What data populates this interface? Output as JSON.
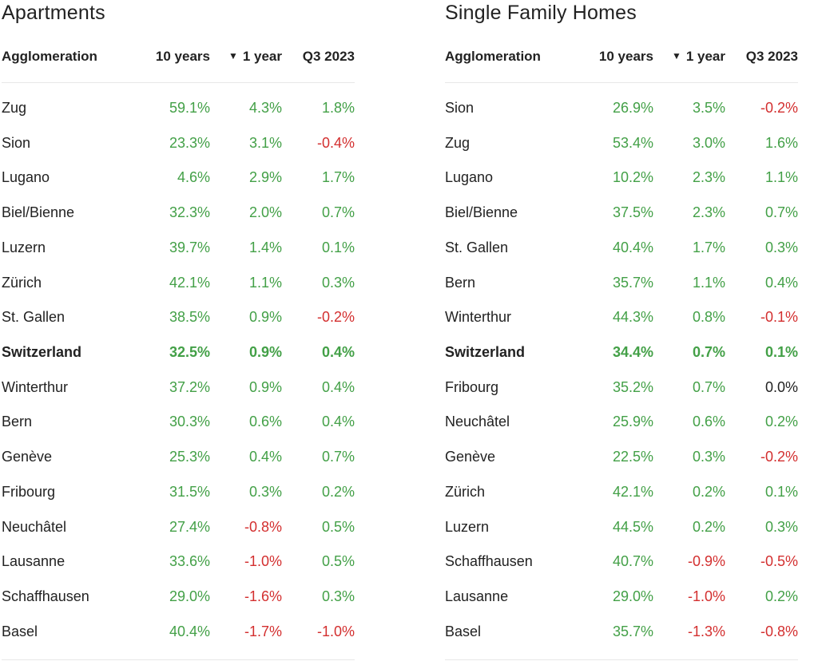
{
  "colors": {
    "positive": "#43a047",
    "negative": "#d32f2f",
    "neutral": "#222222"
  },
  "apartments": {
    "title": "Apartments",
    "headers": {
      "name": "Agglomeration",
      "ten_years": "10 years",
      "one_year": "1 year",
      "q3": "Q3 2023",
      "sort_icon": "sort-descending-icon"
    },
    "rows": [
      {
        "name": "Zug",
        "ten_years": "59.1%",
        "one_year": "4.3%",
        "q3": "1.8%"
      },
      {
        "name": "Sion",
        "ten_years": "23.3%",
        "one_year": "3.1%",
        "q3": "-0.4%"
      },
      {
        "name": "Lugano",
        "ten_years": "4.6%",
        "one_year": "2.9%",
        "q3": "1.7%"
      },
      {
        "name": "Biel/Bienne",
        "ten_years": "32.3%",
        "one_year": "2.0%",
        "q3": "0.7%"
      },
      {
        "name": "Luzern",
        "ten_years": "39.7%",
        "one_year": "1.4%",
        "q3": "0.1%"
      },
      {
        "name": "Zürich",
        "ten_years": "42.1%",
        "one_year": "1.1%",
        "q3": "0.3%"
      },
      {
        "name": "St. Gallen",
        "ten_years": "38.5%",
        "one_year": "0.9%",
        "q3": "-0.2%"
      },
      {
        "name": "Switzerland",
        "ten_years": "32.5%",
        "one_year": "0.9%",
        "q3": "0.4%",
        "bold": true
      },
      {
        "name": "Winterthur",
        "ten_years": "37.2%",
        "one_year": "0.9%",
        "q3": "0.4%"
      },
      {
        "name": "Bern",
        "ten_years": "30.3%",
        "one_year": "0.6%",
        "q3": "0.4%"
      },
      {
        "name": "Genève",
        "ten_years": "25.3%",
        "one_year": "0.4%",
        "q3": "0.7%"
      },
      {
        "name": "Fribourg",
        "ten_years": "31.5%",
        "one_year": "0.3%",
        "q3": "0.2%"
      },
      {
        "name": "Neuchâtel",
        "ten_years": "27.4%",
        "one_year": "-0.8%",
        "q3": "0.5%"
      },
      {
        "name": "Lausanne",
        "ten_years": "33.6%",
        "one_year": "-1.0%",
        "q3": "0.5%"
      },
      {
        "name": "Schaffhausen",
        "ten_years": "29.0%",
        "one_year": "-1.6%",
        "q3": "0.3%"
      },
      {
        "name": "Basel",
        "ten_years": "40.4%",
        "one_year": "-1.7%",
        "q3": "-1.0%"
      }
    ]
  },
  "homes": {
    "title": "Single Family Homes",
    "headers": {
      "name": "Agglomeration",
      "ten_years": "10 years",
      "one_year": "1 year",
      "q3": "Q3 2023",
      "sort_icon": "sort-descending-icon"
    },
    "rows": [
      {
        "name": "Sion",
        "ten_years": "26.9%",
        "one_year": "3.5%",
        "q3": "-0.2%"
      },
      {
        "name": "Zug",
        "ten_years": "53.4%",
        "one_year": "3.0%",
        "q3": "1.6%"
      },
      {
        "name": "Lugano",
        "ten_years": "10.2%",
        "one_year": "2.3%",
        "q3": "1.1%"
      },
      {
        "name": "Biel/Bienne",
        "ten_years": "37.5%",
        "one_year": "2.3%",
        "q3": "0.7%"
      },
      {
        "name": "St. Gallen",
        "ten_years": "40.4%",
        "one_year": "1.7%",
        "q3": "0.3%"
      },
      {
        "name": "Bern",
        "ten_years": "35.7%",
        "one_year": "1.1%",
        "q3": "0.4%"
      },
      {
        "name": "Winterthur",
        "ten_years": "44.3%",
        "one_year": "0.8%",
        "q3": "-0.1%"
      },
      {
        "name": "Switzerland",
        "ten_years": "34.4%",
        "one_year": "0.7%",
        "q3": "0.1%",
        "bold": true
      },
      {
        "name": "Fribourg",
        "ten_years": "35.2%",
        "one_year": "0.7%",
        "q3": "0.0%"
      },
      {
        "name": "Neuchâtel",
        "ten_years": "25.9%",
        "one_year": "0.6%",
        "q3": "0.2%"
      },
      {
        "name": "Genève",
        "ten_years": "22.5%",
        "one_year": "0.3%",
        "q3": "-0.2%"
      },
      {
        "name": "Zürich",
        "ten_years": "42.1%",
        "one_year": "0.2%",
        "q3": "0.1%"
      },
      {
        "name": "Luzern",
        "ten_years": "44.5%",
        "one_year": "0.2%",
        "q3": "0.3%"
      },
      {
        "name": "Schaffhausen",
        "ten_years": "40.7%",
        "one_year": "-0.9%",
        "q3": "-0.5%"
      },
      {
        "name": "Lausanne",
        "ten_years": "29.0%",
        "one_year": "-1.0%",
        "q3": "0.2%"
      },
      {
        "name": "Basel",
        "ten_years": "35.7%",
        "one_year": "-1.3%",
        "q3": "-0.8%"
      }
    ]
  }
}
